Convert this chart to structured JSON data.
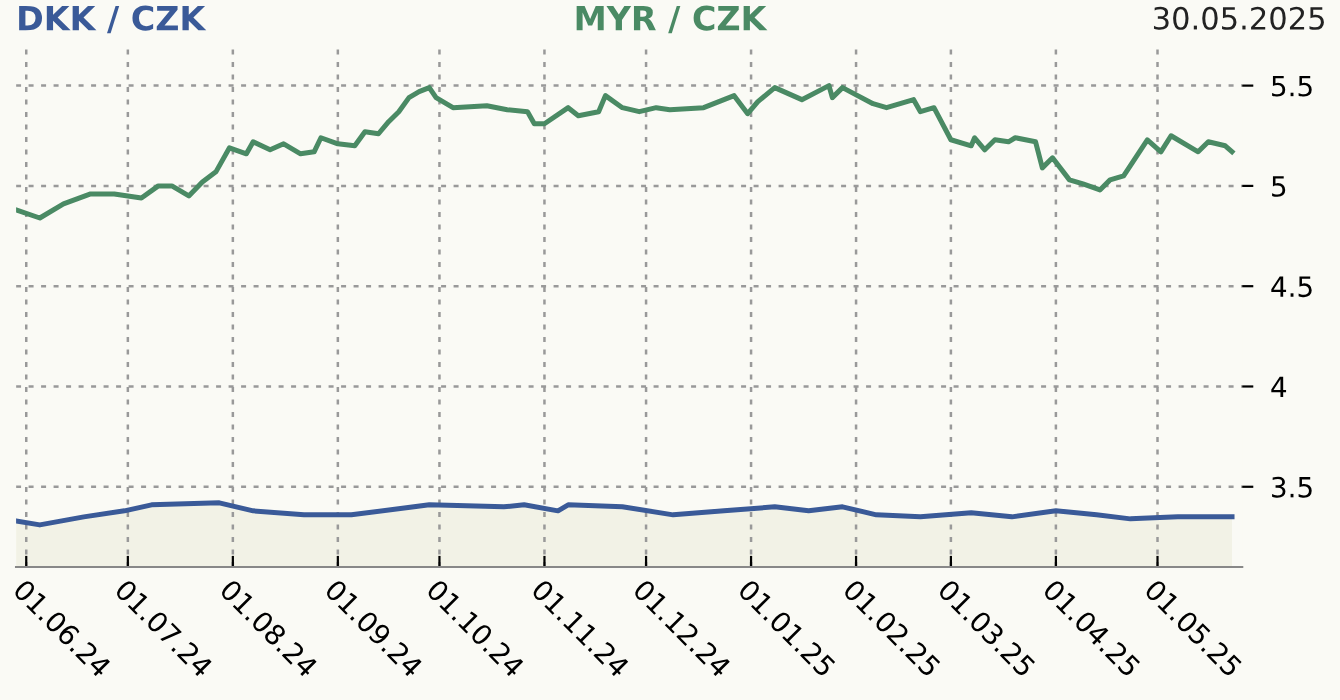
{
  "chart_data": {
    "type": "line",
    "annotations": [
      "30.05.2025"
    ],
    "series": [
      {
        "name": "DKK / CZK",
        "type": "area",
        "color": "#3a5a98",
        "x": [
          "2024-05-29",
          "2024-06-05",
          "2024-06-18",
          "2024-06-30",
          "2024-07-08",
          "2024-07-28",
          "2024-08-07",
          "2024-08-22",
          "2024-09-05",
          "2024-09-28",
          "2024-10-20",
          "2024-10-26",
          "2024-11-05",
          "2024-11-08",
          "2024-11-24",
          "2024-12-09",
          "2024-12-24",
          "2025-01-08",
          "2025-01-18",
          "2025-01-28",
          "2025-02-07",
          "2025-02-20",
          "2025-03-07",
          "2025-03-19",
          "2025-04-01",
          "2025-04-13",
          "2025-04-23",
          "2025-05-07",
          "2025-05-23"
        ],
        "values": [
          3.33,
          3.31,
          3.35,
          3.38,
          3.41,
          3.42,
          3.38,
          3.36,
          3.36,
          3.41,
          3.4,
          3.41,
          3.38,
          3.41,
          3.4,
          3.36,
          3.38,
          3.4,
          3.38,
          3.4,
          3.36,
          3.35,
          3.37,
          3.35,
          3.38,
          3.36,
          3.34,
          3.35,
          3.35
        ]
      },
      {
        "name": "MYR / CZK",
        "color": "#4a8a64",
        "x": [
          "2024-05-29",
          "2024-06-05",
          "2024-06-12",
          "2024-06-20",
          "2024-06-27",
          "2024-07-05",
          "2024-07-10",
          "2024-07-14",
          "2024-07-19",
          "2024-07-23",
          "2024-07-27",
          "2024-07-31",
          "2024-08-05",
          "2024-08-07",
          "2024-08-12",
          "2024-08-16",
          "2024-08-21",
          "2024-08-25",
          "2024-08-27",
          "2024-09-01",
          "2024-09-06",
          "2024-09-09",
          "2024-09-13",
          "2024-09-16",
          "2024-09-19",
          "2024-09-22",
          "2024-09-25",
          "2024-09-28",
          "2024-09-30",
          "2024-10-05",
          "2024-10-15",
          "2024-10-21",
          "2024-10-27",
          "2024-10-29",
          "2024-11-01",
          "2024-11-08",
          "2024-11-11",
          "2024-11-17",
          "2024-11-19",
          "2024-11-24",
          "2024-11-29",
          "2024-12-04",
          "2024-12-08",
          "2024-12-18",
          "2024-12-27",
          "2024-12-31",
          "2025-01-03",
          "2025-01-08",
          "2025-01-16",
          "2025-01-24",
          "2025-01-25",
          "2025-01-28",
          "2025-02-06",
          "2025-02-10",
          "2025-02-18",
          "2025-02-20",
          "2025-02-24",
          "2025-03-01",
          "2025-03-07",
          "2025-03-08",
          "2025-03-11",
          "2025-03-14",
          "2025-03-18",
          "2025-03-20",
          "2025-03-26",
          "2025-03-28",
          "2025-03-31",
          "2025-04-05",
          "2025-04-09",
          "2025-04-14",
          "2025-04-17",
          "2025-04-21",
          "2025-04-28",
          "2025-05-02",
          "2025-05-05",
          "2025-05-13",
          "2025-05-16",
          "2025-05-21",
          "2025-05-23"
        ],
        "values": [
          4.88,
          4.84,
          4.91,
          4.96,
          4.96,
          4.94,
          5.0,
          5.0,
          4.95,
          5.02,
          5.07,
          5.19,
          5.16,
          5.22,
          5.18,
          5.21,
          5.16,
          5.17,
          5.24,
          5.21,
          5.2,
          5.27,
          5.26,
          5.32,
          5.37,
          5.44,
          5.47,
          5.49,
          5.44,
          5.39,
          5.4,
          5.38,
          5.37,
          5.31,
          5.31,
          5.39,
          5.35,
          5.37,
          5.45,
          5.39,
          5.37,
          5.39,
          5.38,
          5.39,
          5.45,
          5.36,
          5.42,
          5.49,
          5.43,
          5.5,
          5.44,
          5.49,
          5.41,
          5.39,
          5.43,
          5.37,
          5.39,
          5.23,
          5.2,
          5.24,
          5.18,
          5.23,
          5.22,
          5.24,
          5.22,
          5.09,
          5.14,
          5.03,
          5.01,
          4.98,
          5.03,
          5.05,
          5.23,
          5.17,
          5.25,
          5.17,
          5.22,
          5.2,
          5.17
        ]
      }
    ],
    "xlim": [
      "2024-05-29",
      "2025-05-26"
    ],
    "xticks": [
      {
        "value": "2024-06-01",
        "label": "01.06.24"
      },
      {
        "value": "2024-07-01",
        "label": "01.07.24"
      },
      {
        "value": "2024-08-01",
        "label": "01.08.24"
      },
      {
        "value": "2024-09-01",
        "label": "01.09.24"
      },
      {
        "value": "2024-10-01",
        "label": "01.10.24"
      },
      {
        "value": "2024-11-01",
        "label": "01.11.24"
      },
      {
        "value": "2024-12-01",
        "label": "01.12.24"
      },
      {
        "value": "2025-01-01",
        "label": "01.01.25"
      },
      {
        "value": "2025-02-01",
        "label": "01.02.25"
      },
      {
        "value": "2025-03-01",
        "label": "01.03.25"
      },
      {
        "value": "2025-04-01",
        "label": "01.04.25"
      },
      {
        "value": "2025-05-01",
        "label": "01.05.25"
      }
    ],
    "ylim": [
      3.1,
      5.7
    ],
    "yticks": [
      {
        "value": 3.5,
        "label": "3.5"
      },
      4,
      {
        "value": 4.5,
        "label": "4.5"
      },
      5,
      {
        "value": 5.5,
        "label": "5.5"
      }
    ],
    "grid": true,
    "legend": "top",
    "line_style": "solid"
  }
}
